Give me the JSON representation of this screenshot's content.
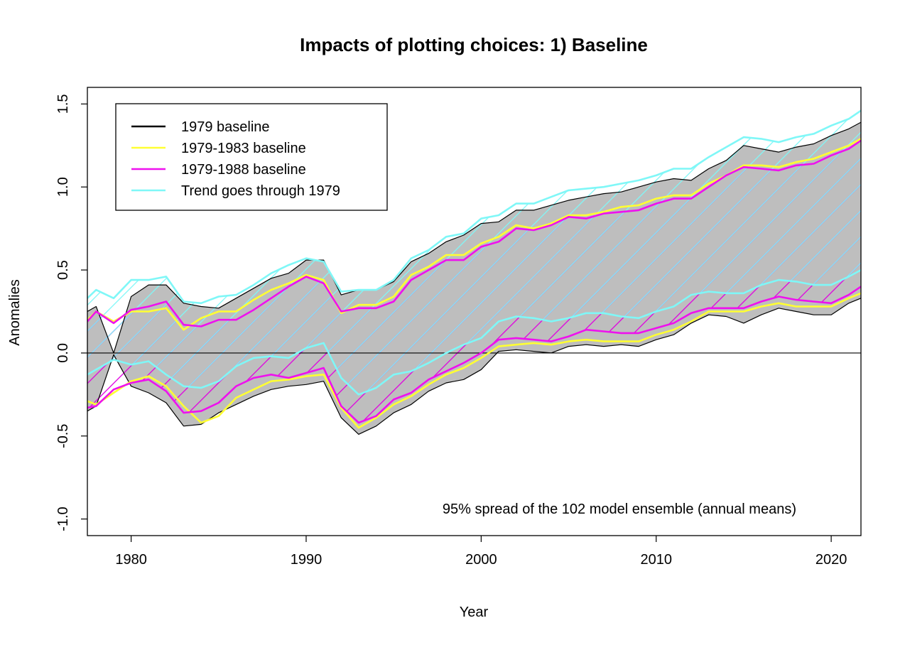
{
  "chart_data": {
    "type": "area",
    "title": "Impacts of plotting choices: 1) Baseline",
    "xlabel": "Year",
    "ylabel": "Anomalies",
    "xlim": [
      1977.5,
      2021.7
    ],
    "ylim": [
      -1.1,
      1.6
    ],
    "x_ticks": [
      1980,
      1990,
      2000,
      2010,
      2020
    ],
    "y_ticks": [
      -1.0,
      -0.5,
      0.0,
      0.5,
      1.0,
      1.5
    ],
    "y_tick_labels": [
      "-1.0",
      "-0.5",
      "0.0",
      "0.5",
      "1.0",
      "1.5"
    ],
    "reference_line": 0.0,
    "annotation": "95% spread of the 102 model ensemble (annual means)",
    "legend": {
      "position": "top-left",
      "entries": [
        {
          "label": "1979 baseline",
          "color": "#000000"
        },
        {
          "label": "1979-1983 baseline",
          "color": "#ffff33"
        },
        {
          "label": "1979-1988 baseline",
          "color": "#ee11ee"
        },
        {
          "label": "Trend goes through 1979",
          "color": "#7ff7f7"
        }
      ]
    },
    "x": [
      1977.5,
      1978,
      1979,
      1980,
      1981,
      1982,
      1983,
      1984,
      1985,
      1986,
      1987,
      1988,
      1989,
      1990,
      1991,
      1992,
      1993,
      1994,
      1995,
      1996,
      1997,
      1998,
      1999,
      2000,
      2001,
      2002,
      2003,
      2004,
      2005,
      2006,
      2007,
      2008,
      2009,
      2010,
      2011,
      2012,
      2013,
      2014,
      2015,
      2016,
      2017,
      2018,
      2019,
      2020,
      2021,
      2021.7
    ],
    "series": [
      {
        "name": "1979 baseline",
        "color": "#000000",
        "fill": "#bebebe",
        "upper": [
          0.25,
          0.28,
          0.0,
          0.34,
          0.41,
          0.41,
          0.3,
          0.28,
          0.27,
          0.33,
          0.39,
          0.45,
          0.48,
          0.56,
          0.56,
          0.35,
          0.38,
          0.38,
          0.43,
          0.55,
          0.6,
          0.67,
          0.71,
          0.78,
          0.79,
          0.86,
          0.86,
          0.89,
          0.92,
          0.94,
          0.96,
          0.97,
          1.0,
          1.03,
          1.05,
          1.04,
          1.11,
          1.16,
          1.25,
          1.23,
          1.21,
          1.24,
          1.26,
          1.31,
          1.35,
          1.39
        ],
        "lower": [
          -0.35,
          -0.32,
          -0.01,
          -0.2,
          -0.24,
          -0.3,
          -0.44,
          -0.43,
          -0.36,
          -0.31,
          -0.26,
          -0.22,
          -0.2,
          -0.19,
          -0.17,
          -0.39,
          -0.49,
          -0.44,
          -0.36,
          -0.31,
          -0.23,
          -0.18,
          -0.16,
          -0.1,
          0.01,
          0.02,
          0.01,
          0.0,
          0.04,
          0.05,
          0.04,
          0.05,
          0.04,
          0.08,
          0.11,
          0.18,
          0.23,
          0.22,
          0.18,
          0.23,
          0.27,
          0.25,
          0.23,
          0.23,
          0.3,
          0.33
        ]
      },
      {
        "name": "1979-1983 baseline",
        "color": "#ffff33",
        "upper": [
          0.2,
          0.25,
          0.19,
          0.25,
          0.25,
          0.27,
          0.14,
          0.21,
          0.25,
          0.25,
          0.32,
          0.38,
          0.42,
          0.47,
          0.44,
          0.24,
          0.29,
          0.29,
          0.34,
          0.47,
          0.52,
          0.59,
          0.59,
          0.66,
          0.7,
          0.77,
          0.75,
          0.78,
          0.83,
          0.83,
          0.85,
          0.88,
          0.89,
          0.93,
          0.95,
          0.95,
          1.02,
          1.07,
          1.13,
          1.13,
          1.12,
          1.15,
          1.17,
          1.21,
          1.25,
          1.29
        ],
        "lower": [
          -0.29,
          -0.31,
          -0.24,
          -0.17,
          -0.14,
          -0.2,
          -0.32,
          -0.42,
          -0.38,
          -0.27,
          -0.22,
          -0.17,
          -0.16,
          -0.14,
          -0.13,
          -0.33,
          -0.45,
          -0.39,
          -0.31,
          -0.26,
          -0.19,
          -0.13,
          -0.09,
          -0.03,
          0.04,
          0.05,
          0.06,
          0.05,
          0.07,
          0.08,
          0.07,
          0.07,
          0.07,
          0.11,
          0.14,
          0.19,
          0.25,
          0.25,
          0.25,
          0.28,
          0.3,
          0.28,
          0.28,
          0.28,
          0.33,
          0.36
        ]
      },
      {
        "name": "1979-1988 baseline",
        "color": "#ee11ee",
        "fill_hatch": "#e000e0",
        "upper": [
          0.19,
          0.25,
          0.18,
          0.26,
          0.28,
          0.31,
          0.17,
          0.16,
          0.2,
          0.2,
          0.26,
          0.33,
          0.4,
          0.46,
          0.42,
          0.25,
          0.27,
          0.27,
          0.31,
          0.44,
          0.5,
          0.56,
          0.56,
          0.64,
          0.67,
          0.75,
          0.74,
          0.77,
          0.82,
          0.81,
          0.84,
          0.85,
          0.86,
          0.9,
          0.93,
          0.93,
          1.0,
          1.07,
          1.12,
          1.11,
          1.1,
          1.13,
          1.14,
          1.19,
          1.23,
          1.28
        ],
        "lower": [
          -0.33,
          -0.32,
          -0.22,
          -0.18,
          -0.16,
          -0.23,
          -0.36,
          -0.35,
          -0.3,
          -0.2,
          -0.15,
          -0.13,
          -0.15,
          -0.12,
          -0.09,
          -0.32,
          -0.42,
          -0.38,
          -0.28,
          -0.24,
          -0.16,
          -0.11,
          -0.06,
          0.0,
          0.08,
          0.09,
          0.08,
          0.07,
          0.1,
          0.14,
          0.13,
          0.12,
          0.12,
          0.15,
          0.18,
          0.24,
          0.27,
          0.27,
          0.27,
          0.31,
          0.34,
          0.32,
          0.31,
          0.3,
          0.35,
          0.4
        ]
      },
      {
        "name": "Trend goes through 1979",
        "color": "#7ff7f7",
        "fill_hatch": "#7ff7f7",
        "upper": [
          0.33,
          0.38,
          0.33,
          0.44,
          0.44,
          0.46,
          0.31,
          0.3,
          0.34,
          0.35,
          0.41,
          0.48,
          0.53,
          0.57,
          0.55,
          0.37,
          0.38,
          0.38,
          0.44,
          0.57,
          0.62,
          0.7,
          0.72,
          0.81,
          0.83,
          0.9,
          0.9,
          0.94,
          0.98,
          0.99,
          1.0,
          1.02,
          1.04,
          1.07,
          1.11,
          1.11,
          1.18,
          1.24,
          1.3,
          1.29,
          1.27,
          1.3,
          1.32,
          1.37,
          1.41,
          1.46
        ],
        "lower": [
          -0.13,
          -0.1,
          -0.04,
          -0.07,
          -0.05,
          -0.13,
          -0.2,
          -0.21,
          -0.17,
          -0.08,
          -0.03,
          -0.02,
          -0.03,
          0.03,
          0.06,
          -0.15,
          -0.25,
          -0.21,
          -0.13,
          -0.11,
          -0.06,
          0.0,
          0.05,
          0.09,
          0.19,
          0.22,
          0.21,
          0.19,
          0.21,
          0.24,
          0.24,
          0.22,
          0.21,
          0.25,
          0.28,
          0.35,
          0.37,
          0.36,
          0.36,
          0.41,
          0.44,
          0.43,
          0.41,
          0.41,
          0.46,
          0.5
        ]
      }
    ]
  }
}
